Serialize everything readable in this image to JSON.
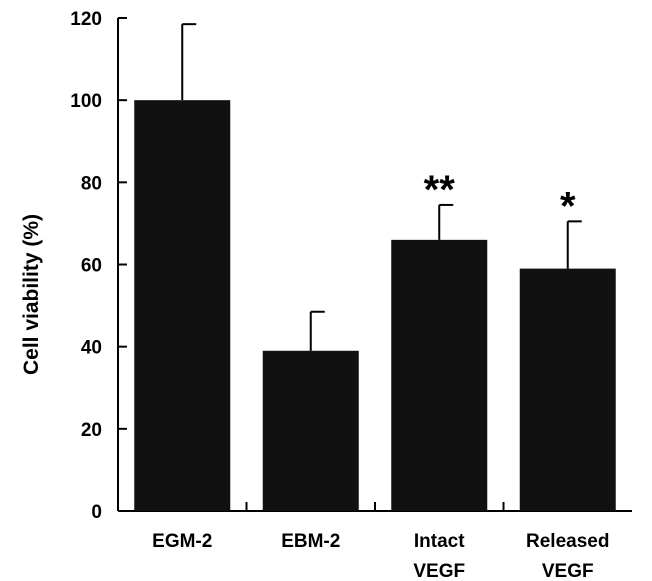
{
  "chart_data": {
    "type": "bar",
    "title": "",
    "xlabel": "",
    "ylabel": "Cell viability (%)",
    "ylim": [
      0,
      120
    ],
    "yticks": [
      0,
      20,
      40,
      60,
      80,
      100,
      120
    ],
    "categories": [
      [
        "EGM-2"
      ],
      [
        "EBM-2"
      ],
      [
        "Intact",
        "VEGF"
      ],
      [
        "Released",
        "VEGF"
      ]
    ],
    "values": [
      100,
      39,
      66,
      59
    ],
    "error": [
      18.5,
      9.5,
      8.5,
      11.5
    ],
    "significance": [
      "",
      "",
      "**",
      "*"
    ],
    "bar_color": "#111111",
    "grid": false,
    "legend": "none"
  }
}
